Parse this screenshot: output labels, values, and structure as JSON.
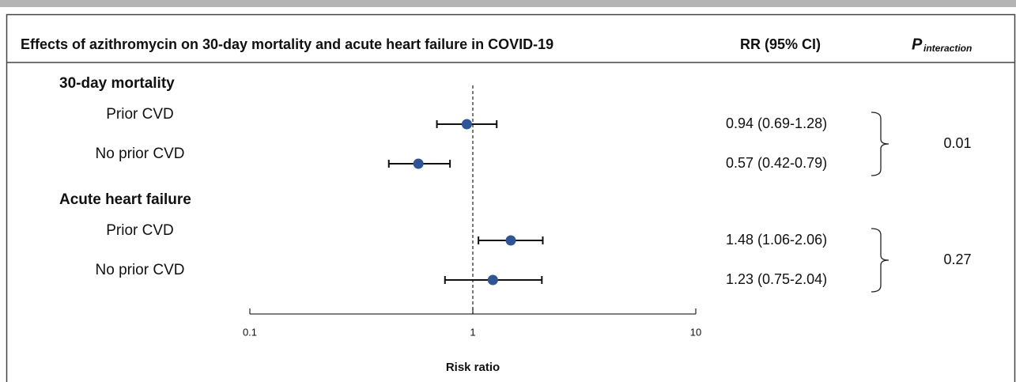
{
  "chart_data": {
    "type": "forest",
    "title": "Effects of azithromycin on 30-day mortality and acute heart failure in COVID-19",
    "estimate_header": "RR (95% CI)",
    "p_header": {
      "symbol": "P",
      "subscript": "interaction"
    },
    "groups": [
      {
        "name": "30-day mortality",
        "p_interaction": 0.01,
        "rows": [
          {
            "label": "Prior CVD",
            "estimate": 0.94,
            "lower": 0.69,
            "upper": 1.28,
            "value_label": "0.94 (0.69-1.28)"
          },
          {
            "label": "No prior CVD",
            "estimate": 0.57,
            "lower": 0.42,
            "upper": 0.79,
            "value_label": "0.57 (0.42-0.79)"
          }
        ]
      },
      {
        "name": "Acute heart failure",
        "p_interaction": 0.27,
        "rows": [
          {
            "label": "Prior CVD",
            "estimate": 1.48,
            "lower": 1.06,
            "upper": 2.06,
            "value_label": "1.48 (1.06-2.06)"
          },
          {
            "label": "No prior CVD",
            "estimate": 1.23,
            "lower": 0.75,
            "upper": 2.04,
            "value_label": "1.23 (0.75-2.04)"
          }
        ]
      }
    ],
    "xscale": "log",
    "xlim": [
      0.1,
      10
    ],
    "xticks": [
      0.1,
      1,
      10
    ],
    "xlabel": "Risk ratio",
    "reference_line": 1,
    "color": "#2f5597"
  }
}
